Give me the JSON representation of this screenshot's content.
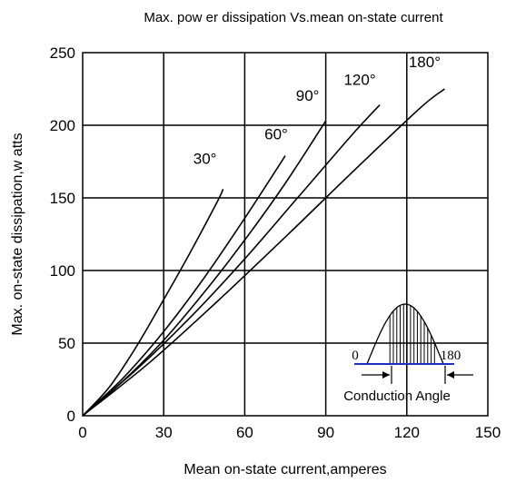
{
  "chart_data": {
    "type": "line",
    "title": "Max. pow er dissipation Vs.mean on-state current",
    "xlabel": "Mean  on-state current,amperes",
    "ylabel": "Max. on-state dissipation,w atts",
    "xlim": [
      0,
      150
    ],
    "ylim": [
      0,
      250
    ],
    "x_ticks": [
      0,
      30,
      60,
      90,
      120,
      150
    ],
    "y_ticks": [
      0,
      50,
      100,
      150,
      200,
      250
    ],
    "x_tick_labels": [
      "0",
      "30",
      "60",
      "90",
      "120",
      "150"
    ],
    "y_tick_labels": [
      "0",
      "50",
      "100",
      "150",
      "200",
      "250"
    ],
    "grid": true,
    "legend": "none",
    "series": [
      {
        "name": "30°",
        "x": [
          0,
          10,
          20,
          30,
          40,
          50,
          52
        ],
        "y": [
          0,
          20,
          48,
          80,
          113,
          148,
          156
        ]
      },
      {
        "name": "60°",
        "x": [
          0,
          15,
          30,
          45,
          60,
          75
        ],
        "y": [
          0,
          26,
          58,
          95,
          136,
          179
        ]
      },
      {
        "name": "90°",
        "x": [
          0,
          15,
          30,
          45,
          60,
          75,
          90
        ],
        "y": [
          0,
          24,
          52,
          85,
          121,
          160,
          203
        ]
      },
      {
        "name": "120°",
        "x": [
          0,
          20,
          40,
          60,
          80,
          100,
          110
        ],
        "y": [
          0,
          32,
          68,
          108,
          151,
          194,
          214
        ]
      },
      {
        "name": "180°",
        "x": [
          0,
          25,
          50,
          75,
          100,
          125,
          134
        ],
        "y": [
          0,
          37,
          79,
          123,
          168,
          212,
          225
        ]
      }
    ],
    "series_labels": [
      "30°",
      "60°",
      "90°",
      "120°",
      "180°"
    ],
    "annotations": {
      "inset_left_label": "0",
      "inset_right_label": "180",
      "inset_caption": "Conduction Angle"
    },
    "colors": {
      "curves": "#000000",
      "grid": "#000000",
      "baseline": "#1f2fbf"
    }
  }
}
